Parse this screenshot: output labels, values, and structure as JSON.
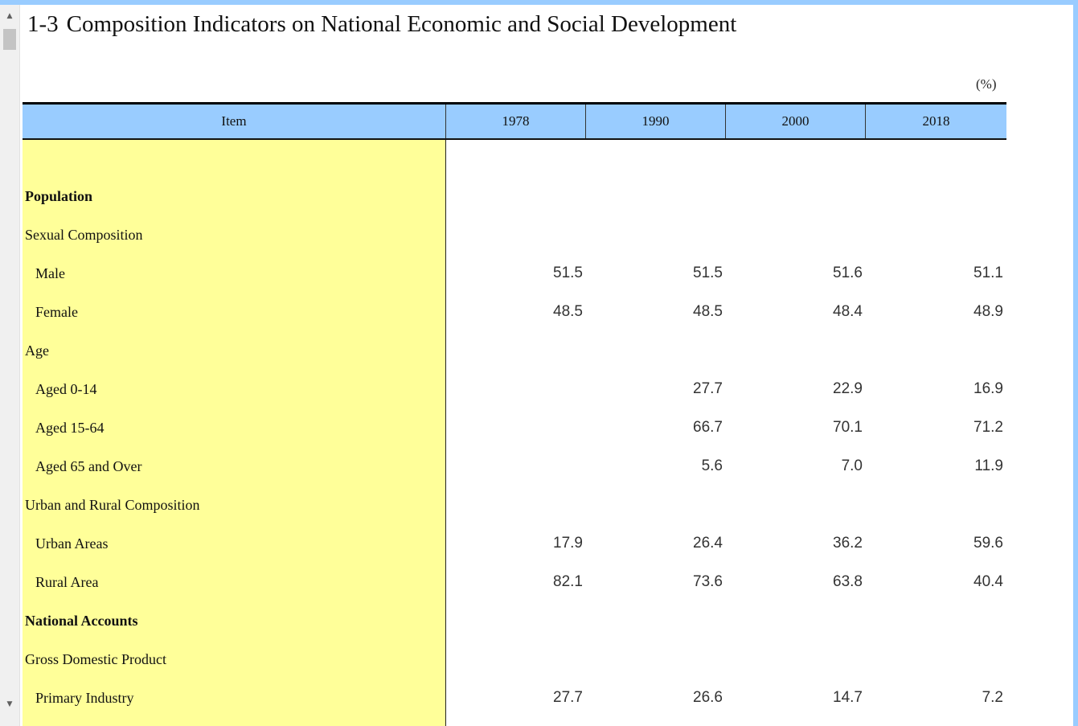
{
  "title": {
    "number": "1-3",
    "text": "Composition Indicators on National Economic and Social Development"
  },
  "unit": "(%)",
  "table": {
    "headers": [
      "Item",
      "1978",
      "1990",
      "2000",
      "2018"
    ],
    "rows": [
      {
        "label": "Population",
        "values": [
          "",
          "",
          "",
          ""
        ]
      },
      {
        "label": "Sexual Composition",
        "values": [
          "",
          "",
          "",
          ""
        ]
      },
      {
        "label": "Male",
        "values": [
          "51.5",
          "51.5",
          "51.6",
          "51.1"
        ]
      },
      {
        "label": "Female",
        "values": [
          "48.5",
          "48.5",
          "48.4",
          "48.9"
        ]
      },
      {
        "label": "Age",
        "values": [
          "",
          "",
          "",
          ""
        ]
      },
      {
        "label": "Aged 0-14",
        "values": [
          "",
          "27.7",
          "22.9",
          "16.9"
        ]
      },
      {
        "label": "Aged 15-64",
        "values": [
          "",
          "66.7",
          "70.1",
          "71.2"
        ]
      },
      {
        "label": "Aged 65 and Over",
        "values": [
          "",
          "5.6",
          "7.0",
          "11.9"
        ]
      },
      {
        "label": "Urban and Rural Composition",
        "values": [
          "",
          "",
          "",
          ""
        ]
      },
      {
        "label": "Urban Areas",
        "values": [
          "17.9",
          "26.4",
          "36.2",
          "59.6"
        ]
      },
      {
        "label": "Rural Area",
        "values": [
          "82.1",
          "73.6",
          "63.8",
          "40.4"
        ]
      },
      {
        "label": "National Accounts",
        "values": [
          "",
          "",
          "",
          ""
        ]
      },
      {
        "label": "Gross Domestic Product",
        "values": [
          "",
          "",
          "",
          ""
        ]
      },
      {
        "label": "Primary Industry",
        "values": [
          "27.7",
          "26.6",
          "14.7",
          "7.2"
        ]
      }
    ]
  },
  "colors": {
    "header_bg": "#99ccff",
    "item_column_bg": "#ffff99",
    "window_accent": "#99ccff"
  },
  "icons": {
    "scroll_up": "triangle-up-icon",
    "scroll_down": "triangle-down-icon"
  }
}
